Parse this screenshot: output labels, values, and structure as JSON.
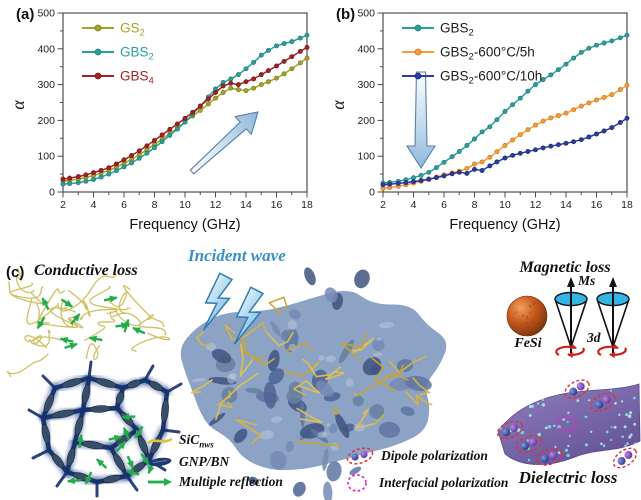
{
  "figure": {
    "panel_a_label": "(a)",
    "panel_b_label": "(b)",
    "panel_c_label": "(c)"
  },
  "chart_data": [
    {
      "id": "a",
      "type": "line",
      "xlabel": "Frequency (GHz)",
      "ylabel": "α",
      "xlim": [
        2,
        18
      ],
      "ylim": [
        0,
        500
      ],
      "xticks": [
        2,
        4,
        6,
        8,
        10,
        12,
        14,
        16,
        18
      ],
      "yticks": [
        0,
        100,
        200,
        300,
        400,
        500
      ],
      "grid": false,
      "legend_position": "top-left-inside",
      "legend_text_color": "series",
      "annotation_arrow": "up-right",
      "x": [
        2,
        3,
        4,
        5,
        6,
        7,
        8,
        9,
        10,
        11,
        12,
        12.5,
        13,
        13.5,
        14,
        14.5,
        15,
        16,
        17,
        18
      ],
      "series": [
        {
          "base": "GS",
          "sub": "2",
          "suffix": "",
          "color": "#A8A325",
          "edge": "#7A7718",
          "values": [
            30,
            36,
            46,
            60,
            80,
            104,
            133,
            163,
            196,
            228,
            262,
            278,
            290,
            286,
            283,
            290,
            300,
            318,
            344,
            374
          ]
        },
        {
          "base": "GBS",
          "sub": "2",
          "suffix": "",
          "color": "#2B9F9A",
          "edge": "#1F7B77",
          "values": [
            22,
            26,
            35,
            50,
            70,
            94,
            124,
            158,
            195,
            240,
            288,
            306,
            316,
            328,
            344,
            362,
            382,
            408,
            420,
            438
          ]
        },
        {
          "base": "GBS",
          "sub": "4",
          "suffix": "",
          "color": "#A32125",
          "edge": "#7C1519",
          "values": [
            36,
            43,
            54,
            68,
            90,
            115,
            144,
            175,
            206,
            240,
            278,
            296,
            304,
            300,
            308,
            316,
            328,
            352,
            378,
            404
          ]
        }
      ]
    },
    {
      "id": "b",
      "type": "line",
      "xlabel": "Frequency (GHz)",
      "ylabel": "α",
      "xlim": [
        2,
        18
      ],
      "ylim": [
        0,
        500
      ],
      "xticks": [
        2,
        4,
        6,
        8,
        10,
        12,
        14,
        16,
        18
      ],
      "yticks": [
        0,
        100,
        200,
        300,
        400,
        500
      ],
      "grid": false,
      "legend_position": "top-left-inside",
      "legend_text_color": "#1a1a1a",
      "annotation_arrow": "down",
      "x": [
        2,
        3,
        4,
        5,
        6,
        7,
        7.5,
        8,
        8.5,
        9,
        10,
        11,
        12,
        13,
        14,
        15,
        16,
        17,
        18
      ],
      "series": [
        {
          "base": "GBS",
          "sub": "2",
          "suffix": "",
          "color": "#2B9F9A",
          "edge": "#1F7B77",
          "values": [
            25,
            30,
            40,
            55,
            83,
            113,
            130,
            148,
            168,
            182,
            225,
            262,
            300,
            327,
            357,
            390,
            410,
            422,
            438
          ]
        },
        {
          "base": "GBS",
          "sub": "2",
          "suffix": "-600°C/5h",
          "color": "#F89B38",
          "edge": "#C97718",
          "values": [
            10,
            16,
            25,
            35,
            48,
            58,
            66,
            78,
            84,
            97,
            130,
            160,
            187,
            207,
            220,
            240,
            257,
            272,
            298
          ]
        },
        {
          "base": "GBS",
          "sub": "2",
          "suffix": "-600°C/10h",
          "color": "#2B3B9F",
          "edge": "#1E2B78",
          "values": [
            20,
            24,
            29,
            36,
            45,
            55,
            52,
            63,
            60,
            73,
            95,
            108,
            118,
            128,
            136,
            146,
            162,
            180,
            206
          ]
        }
      ]
    }
  ],
  "schematic": {
    "incident_wave_label": "Incident wave",
    "conductive_loss_label": "Conductive loss",
    "magnetic_loss_label": "Magnetic loss",
    "dielectric_loss_label": "Dielectric loss",
    "fesi_label": "FeSi",
    "ms_label": "Ms",
    "d3_label": "3d",
    "legend_left": [
      {
        "icon": "sic-nanowire-icon",
        "base": "SiC",
        "sub": "nws"
      },
      {
        "icon": "gnp-bn-flake-icon",
        "base": "GNP/BN",
        "sub": ""
      },
      {
        "icon": "multiple-reflection-arrow-icon",
        "base": "Multiple reflection",
        "sub": ""
      }
    ],
    "legend_right": [
      {
        "icon": "dipole-polarization-icon",
        "label": "Dipole polarization"
      },
      {
        "icon": "interfacial-polarization-icon",
        "label": "Interfacial polarization"
      }
    ],
    "colors": {
      "sic_yellow": "#D9B53A",
      "gnp_navy": "#1E3A70",
      "reflection_green": "#22AC4A",
      "dipole_red": "#E03030",
      "interfacial_magenta": "#E428C8",
      "incident_blue": "#3A8FC6",
      "scaffold_blue": "#8CA3C6",
      "sheet_purple": "#7A68AC",
      "fesi_orange": "#C85A1E",
      "cone_cyan": "#35B5E5"
    }
  }
}
